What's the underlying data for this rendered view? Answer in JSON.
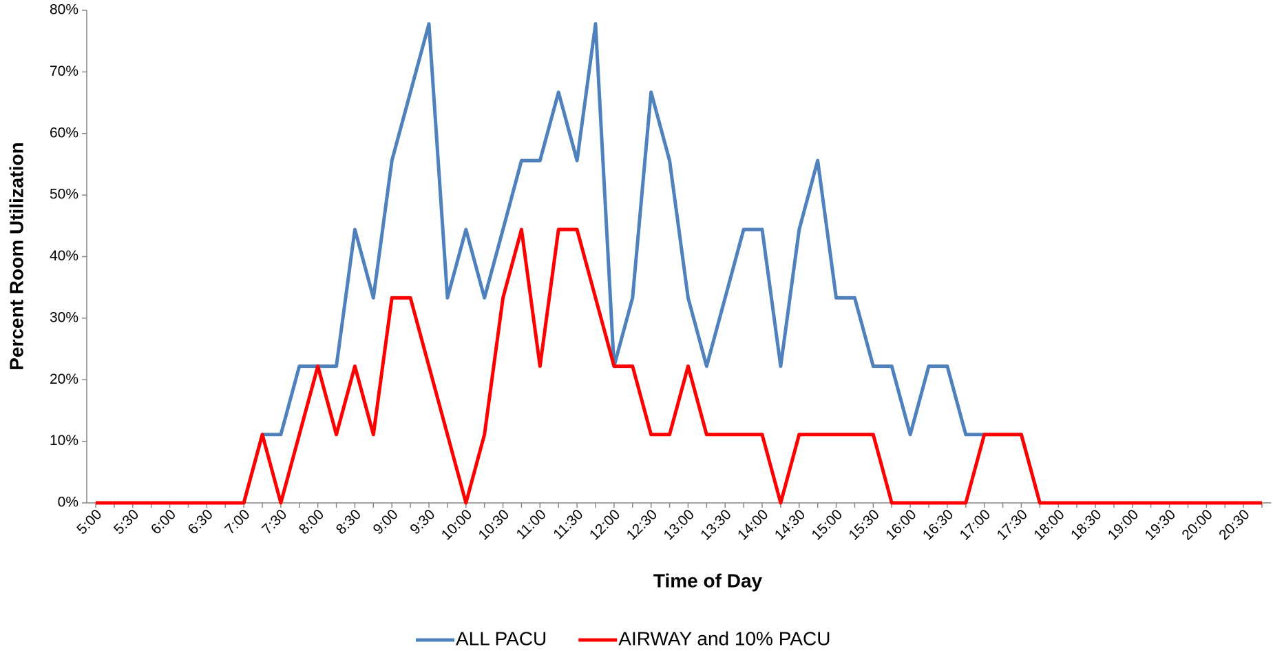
{
  "chart_data": {
    "type": "line",
    "y_label": "Percent Room Utilization",
    "x_label": "Time of Day",
    "categories": [
      "5:00",
      null,
      "5:30",
      null,
      "6:00",
      null,
      "6:30",
      null,
      "7:00",
      null,
      "7:30",
      null,
      "8:00",
      null,
      "8:30",
      null,
      "9:00",
      null,
      "9:30",
      null,
      "10:00",
      null,
      "10:30",
      null,
      "11:00",
      null,
      "11:30",
      null,
      "12:00",
      null,
      "12:30",
      null,
      "13:00",
      null,
      "13:30",
      null,
      "14:00",
      null,
      "14:30",
      null,
      "15:00",
      null,
      "15:30",
      null,
      "16:00",
      null,
      "16:30",
      null,
      "17:00",
      null,
      "17:30",
      null,
      "18:00",
      null,
      "18:30",
      null,
      "19:00",
      null,
      "19:30",
      null,
      "20:00",
      null,
      "20:30",
      null
    ],
    "series": [
      {
        "name": "ALL PACU",
        "color": "#4f81bd",
        "values": [
          0,
          0,
          0,
          0,
          0,
          0,
          0,
          0,
          0,
          11.1,
          11.1,
          22.2,
          22.2,
          22.2,
          44.4,
          33.3,
          55.6,
          66.7,
          77.8,
          33.3,
          44.4,
          33.3,
          44.4,
          55.6,
          55.6,
          66.7,
          55.6,
          77.8,
          22.2,
          33.3,
          66.7,
          55.6,
          33.3,
          22.2,
          33.3,
          44.4,
          44.4,
          22.2,
          44.4,
          55.6,
          33.3,
          33.3,
          22.2,
          22.2,
          11.1,
          22.2,
          22.2,
          11.1,
          11.1,
          11.1,
          11.1,
          0,
          0,
          0,
          0,
          0,
          0,
          0,
          0,
          0,
          0,
          0,
          0,
          0
        ]
      },
      {
        "name": "AIRWAY and 10% PACU",
        "color": "#ff0000",
        "values": [
          0,
          0,
          0,
          0,
          0,
          0,
          0,
          0,
          0,
          11.1,
          0,
          11.1,
          22.2,
          11.1,
          22.2,
          11.1,
          33.3,
          33.3,
          22.2,
          11.1,
          0,
          11.1,
          33.3,
          44.4,
          22.2,
          44.4,
          44.4,
          33.3,
          22.2,
          22.2,
          11.1,
          11.1,
          22.2,
          11.1,
          11.1,
          11.1,
          11.1,
          0,
          11.1,
          11.1,
          11.1,
          11.1,
          11.1,
          0,
          0,
          0,
          0,
          0,
          11.1,
          11.1,
          11.1,
          0,
          0,
          0,
          0,
          0,
          0,
          0,
          0,
          0,
          0,
          0,
          0,
          0
        ]
      }
    ],
    "ylim": [
      0,
      80
    ],
    "yticks": [
      {
        "value": 0,
        "label": "0%"
      },
      {
        "value": 10,
        "label": "10%"
      },
      {
        "value": 20,
        "label": "20%"
      },
      {
        "value": 30,
        "label": "30%"
      },
      {
        "value": 40,
        "label": "40%"
      },
      {
        "value": 50,
        "label": "50%"
      },
      {
        "value": 60,
        "label": "60%"
      },
      {
        "value": 70,
        "label": "70%"
      },
      {
        "value": 80,
        "label": "80%"
      }
    ],
    "grid": false,
    "legend": "bottom"
  }
}
